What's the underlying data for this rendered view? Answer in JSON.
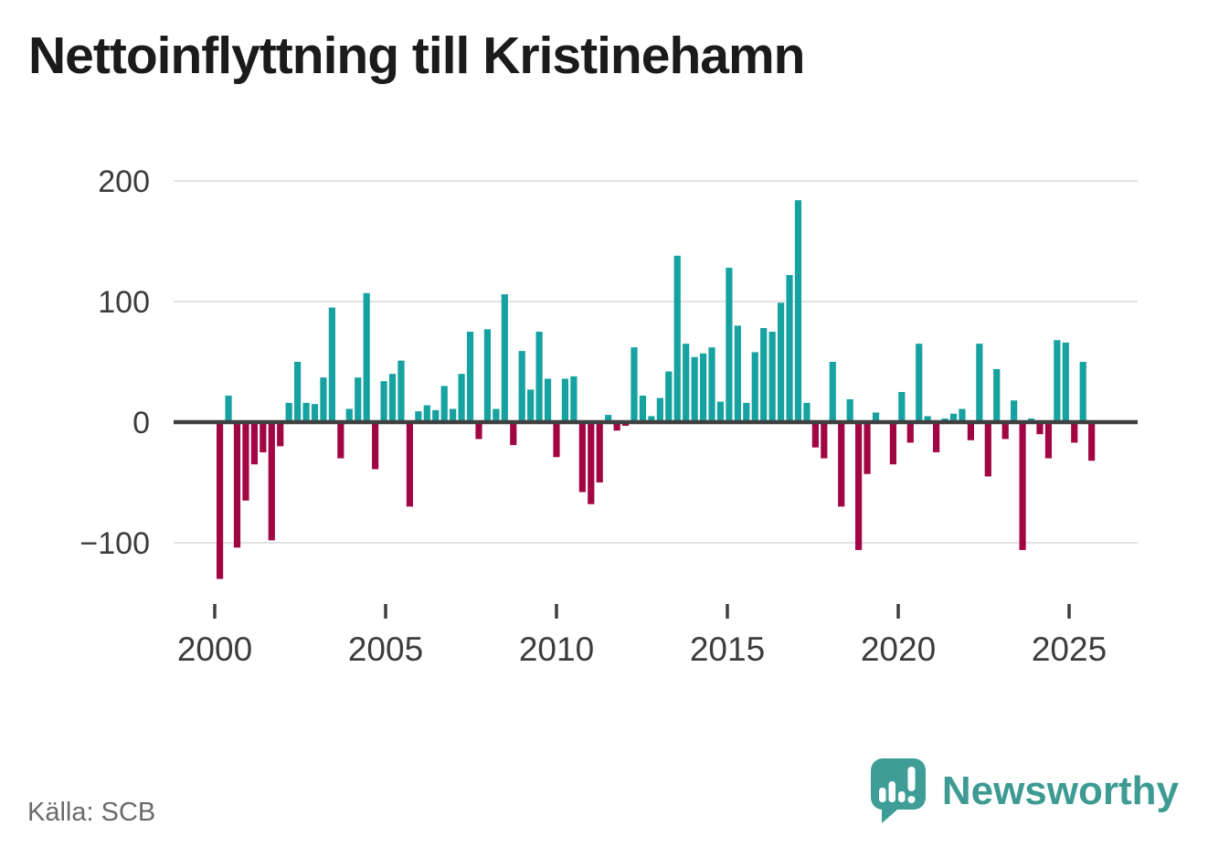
{
  "title": "Nettoinflyttning till Kristinehamn",
  "source": "Källa: SCB",
  "branding": {
    "name": "Newsworthy",
    "logo_icon": "speech-bubble-bar-chart-icon"
  },
  "colors": {
    "positive_bar": "#15a2a0",
    "negative_bar": "#a20544",
    "zero_axis": "#3f3f3f",
    "gridline": "#e3e3e3",
    "tick_text": "#3c3c3c",
    "brand_teal": "#3d9b93",
    "title_text": "#1b1b1b",
    "source_text": "#6a6a6a"
  },
  "chart_data": {
    "type": "bar",
    "title": "Nettoinflyttning till Kristinehamn",
    "xlabel": "",
    "ylabel": "",
    "frequency": "quarterly",
    "start_year": 2000,
    "start_quarter": 1,
    "end_year": 2025,
    "end_quarter": 2,
    "ylim": [
      -140,
      210
    ],
    "grid": "horizontal",
    "legend": "none",
    "y_tick_values": [
      200,
      100,
      0,
      -100
    ],
    "y_tick_labels": [
      "200",
      "100",
      "0",
      "−100"
    ],
    "x_tick_labels": [
      "2000",
      "2005",
      "2010",
      "2015",
      "2020",
      "2025"
    ],
    "values": [
      -130,
      22,
      -104,
      -65,
      -35,
      -25,
      -98,
      -20,
      16,
      50,
      16,
      15,
      37,
      95,
      -30,
      11,
      37,
      107,
      -39,
      34,
      40,
      51,
      -70,
      9,
      14,
      10,
      30,
      11,
      40,
      75,
      -14,
      77,
      11,
      106,
      -19,
      59,
      27,
      75,
      36,
      -29,
      36,
      38,
      -58,
      -68,
      -50,
      6,
      -7,
      -3,
      62,
      22,
      5,
      20,
      42,
      138,
      65,
      54,
      57,
      62,
      17,
      128,
      80,
      16,
      58,
      78,
      75,
      99,
      122,
      184,
      16,
      -21,
      -30,
      50,
      -70,
      19,
      -106,
      -43,
      8,
      0,
      -35,
      25,
      -17,
      65,
      5,
      -25,
      3,
      7,
      11,
      -15,
      65,
      -45,
      44,
      -14,
      18,
      -106,
      3,
      -10,
      -30,
      68,
      66,
      -17,
      50,
      -32
    ]
  }
}
